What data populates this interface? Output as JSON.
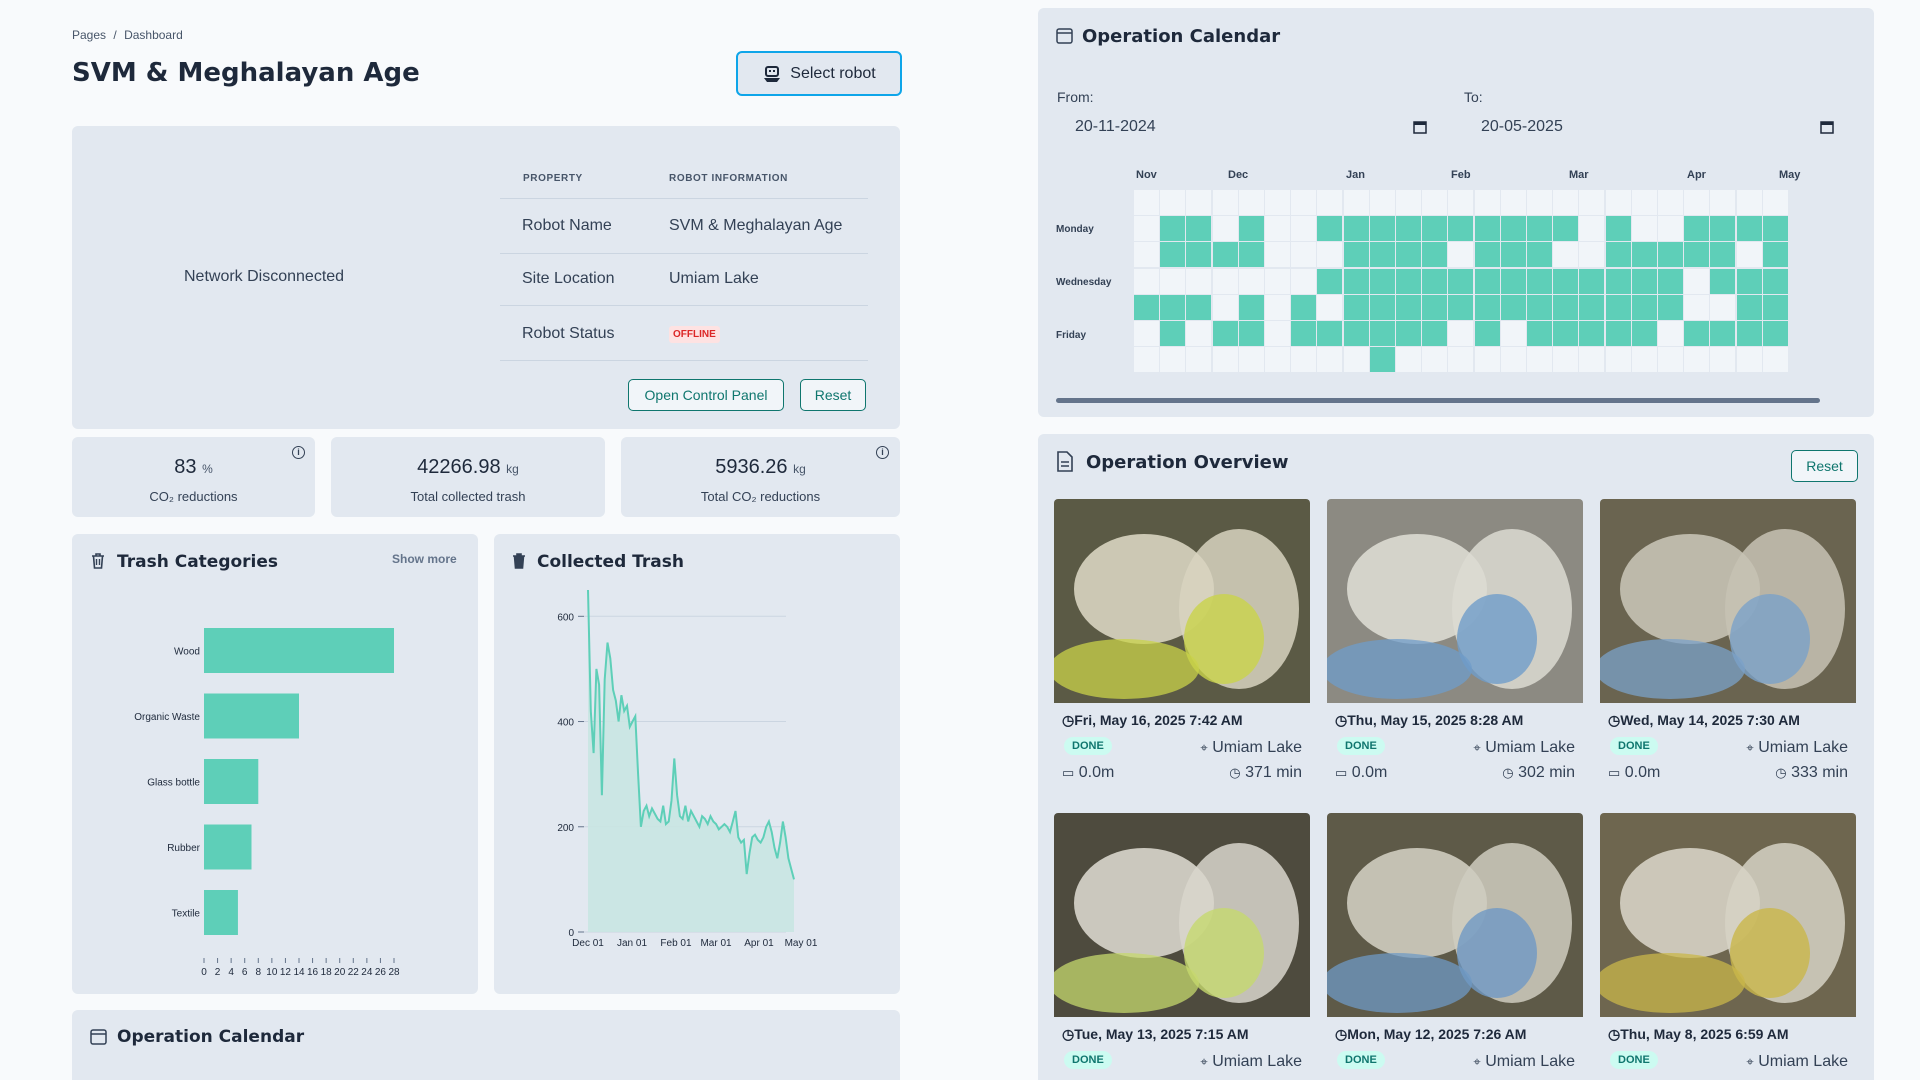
{
  "breadcrumb": {
    "root": "Pages",
    "separator": "/",
    "current": "Dashboard"
  },
  "page_title": "SVM & Meghalayan Age",
  "select_robot_label": "Select robot",
  "robot_panel": {
    "network_status": "Network Disconnected",
    "col_property": "PROPERTY",
    "col_info": "ROBOT INFORMATION",
    "rows": [
      {
        "property": "Robot Name",
        "value": "SVM & Meghalayan Age"
      },
      {
        "property": "Site Location",
        "value": "Umiam Lake"
      },
      {
        "property": "Robot Status",
        "value": "OFFLINE"
      }
    ],
    "open_control_panel": "Open Control Panel",
    "reset": "Reset"
  },
  "stats": [
    {
      "value": "83",
      "unit": "%",
      "label": "CO₂ reductions"
    },
    {
      "value": "42266.98",
      "unit": "kg",
      "label": "Total collected trash"
    },
    {
      "value": "5936.26",
      "unit": "kg",
      "label": "Total CO₂ reductions"
    }
  ],
  "trash_categories": {
    "title": "Trash Categories",
    "show_more": "Show more"
  },
  "collected_trash": {
    "title": "Collected Trash"
  },
  "bottom_calendar_title": "Operation Calendar",
  "calendar": {
    "title": "Operation Calendar",
    "from_label": "From:",
    "from_value": "20-11-2024",
    "to_label": "To:",
    "to_value": "20-05-2025",
    "months": [
      "Nov",
      "Dec",
      "Jan",
      "Feb",
      "Mar",
      "Apr",
      "May"
    ],
    "day_labels": [
      "Monday",
      "Wednesday",
      "Friday"
    ],
    "grid": [
      "0000000000000000000000000",
      "0110100111111111101001111",
      "0111100011110111001111101",
      "0000000111111111111110111",
      "1110101011111111111110011",
      "0101101111110101111101111",
      "0000000001000000000000000"
    ]
  },
  "overview": {
    "title": "Operation Overview",
    "reset": "Reset",
    "cards": [
      {
        "date": "Fri, May 16, 2025 7:42 AM",
        "status": "DONE",
        "location": "Umiam Lake",
        "distance": "0.0m",
        "duration": "371 min"
      },
      {
        "date": "Thu, May 15, 2025 8:28 AM",
        "status": "DONE",
        "location": "Umiam Lake",
        "distance": "0.0m",
        "duration": "302 min"
      },
      {
        "date": "Wed, May 14, 2025 7:30 AM",
        "status": "DONE",
        "location": "Umiam Lake",
        "distance": "0.0m",
        "duration": "333 min"
      },
      {
        "date": "Tue, May 13, 2025 7:15 AM",
        "status": "DONE",
        "location": "Umiam Lake",
        "distance": "",
        "duration": ""
      },
      {
        "date": "Mon, May 12, 2025 7:26 AM",
        "status": "DONE",
        "location": "Umiam Lake",
        "distance": "",
        "duration": ""
      },
      {
        "date": "Thu, May 8, 2025 6:59 AM",
        "status": "DONE",
        "location": "Umiam Lake",
        "distance": "",
        "duration": ""
      }
    ]
  },
  "colors": {
    "accent": "#5ecfb8",
    "card": "#e2e8f0",
    "cell_empty": "#f1f5f9",
    "offline": "#dc2626"
  },
  "chart_data": [
    {
      "type": "bar",
      "orientation": "horizontal",
      "title": "Trash Categories",
      "categories": [
        "Wood",
        "Organic Waste",
        "Glass bottle",
        "Rubber",
        "Textile"
      ],
      "values": [
        28,
        14,
        8,
        7,
        5
      ],
      "xlim": [
        0,
        28
      ],
      "xticks": [
        "0",
        "2",
        "4",
        "6",
        "8",
        "10",
        "12",
        "14",
        "16",
        "18",
        "20",
        "22",
        "24",
        "26",
        "28"
      ]
    },
    {
      "type": "area",
      "title": "Collected Trash",
      "ylim": [
        0,
        650
      ],
      "yticks": [
        "0",
        "200",
        "400",
        "600"
      ],
      "xticks": [
        "Dec 01",
        "Jan 01",
        "Feb 01",
        "Mar 01",
        "Apr 01",
        "May 01"
      ],
      "x_range": [
        "2024-11-20",
        "2025-05-16"
      ],
      "values": [
        650,
        420,
        340,
        500,
        470,
        260,
        480,
        550,
        520,
        460,
        440,
        400,
        450,
        420,
        430,
        390,
        400,
        410,
        300,
        200,
        230,
        240,
        220,
        235,
        225,
        215,
        210,
        240,
        205,
        210,
        250,
        330,
        260,
        220,
        215,
        240,
        210,
        230,
        220,
        210,
        200,
        220,
        215,
        205,
        220,
        210,
        205,
        195,
        200,
        205,
        200,
        190,
        210,
        230,
        180,
        170,
        175,
        110,
        150,
        180,
        185,
        175,
        170,
        180,
        200,
        210,
        190,
        160,
        140,
        170,
        210,
        180,
        140,
        120,
        100
      ]
    }
  ]
}
